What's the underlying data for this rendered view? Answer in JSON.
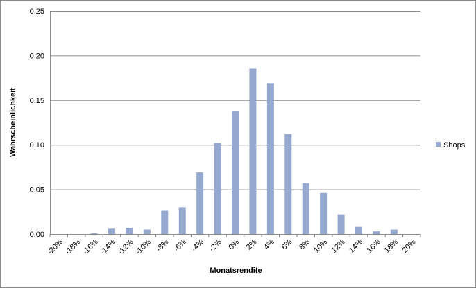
{
  "chart_data": {
    "type": "bar",
    "x_label": "Monatsrendite",
    "y_label": "Wahrscheinlichkeit",
    "categories": [
      "-20%",
      "-18%",
      "-16%",
      "-14%",
      "-12%",
      "-10%",
      "-8%",
      "-6%",
      "-4%",
      "-2%",
      "0%",
      "2%",
      "4%",
      "6%",
      "8%",
      "10%",
      "12%",
      "14%",
      "16%",
      "18%",
      "20%"
    ],
    "series": [
      {
        "name": "Shops",
        "color": "#95a8d0",
        "values": [
          0,
          0,
          0.001,
          0.006,
          0.007,
          0.005,
          0.026,
          0.03,
          0.069,
          0.102,
          0.138,
          0.186,
          0.169,
          0.112,
          0.057,
          0.046,
          0.022,
          0.008,
          0.003,
          0.005,
          0
        ]
      }
    ],
    "ylim": [
      0,
      0.25
    ],
    "yticks": [
      {
        "value": 0,
        "label": "0.00"
      },
      {
        "value": 0.05,
        "label": "0.05"
      },
      {
        "value": 0.1,
        "label": "0.10"
      },
      {
        "value": 0.15,
        "label": "0.15"
      },
      {
        "value": 0.2,
        "label": "0.20"
      },
      {
        "value": 0.25,
        "label": "0.25"
      }
    ],
    "grid": true,
    "legend": "right"
  }
}
